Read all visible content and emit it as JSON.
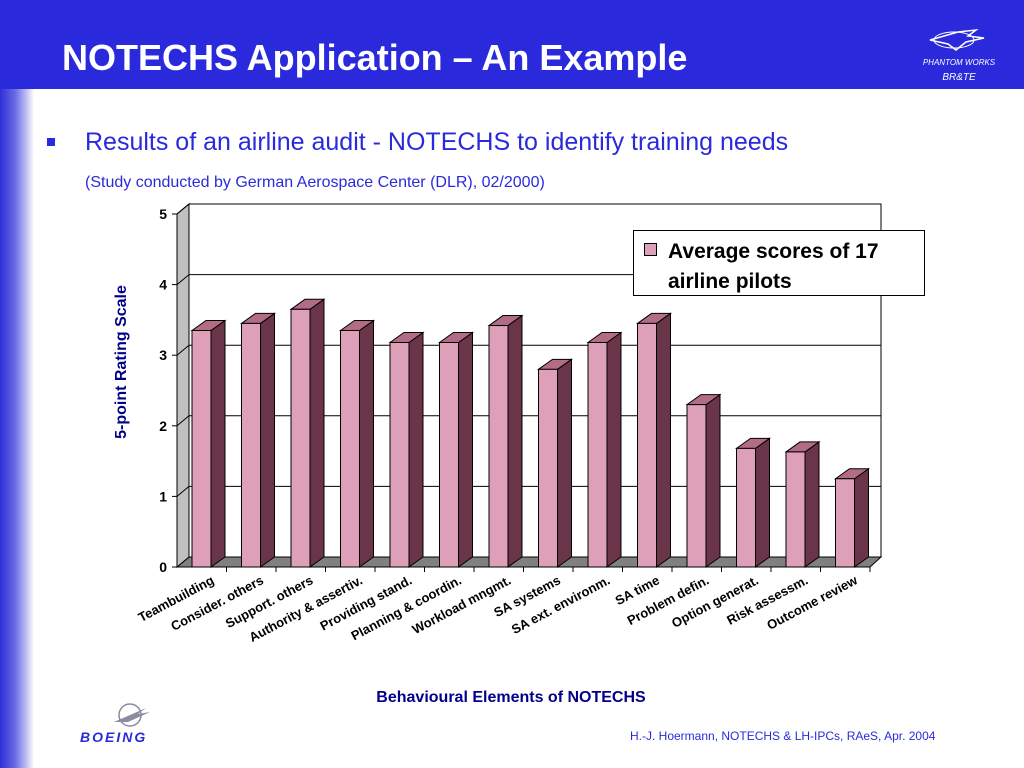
{
  "slide": {
    "title": "NOTECHS Application – An Example",
    "bullet": "Results of an airline audit - NOTECHS to identify training needs",
    "subtitle": "(Study conducted by German Aerospace Center (DLR), 02/2000)",
    "footer": "H.-J. Hoermann, NOTECHS & LH-IPCs, RAeS, Apr. 2004"
  },
  "logo": {
    "line1": "PHANTOM WORKS",
    "line2": "BR&TE",
    "boeing": "BOEING"
  },
  "colors": {
    "header": "#2a2adc",
    "text_blue": "#2a2adc",
    "axis_title": "#00008b",
    "bar_front": "#dda0b8",
    "bar_top": "#b26d85",
    "bar_side": "#6a3548"
  },
  "chart_data": {
    "type": "bar",
    "xlabel": "Behavioural Elements of NOTECHS",
    "ylabel": "5-point Rating Scale",
    "ylim": [
      0,
      5
    ],
    "yticks": [
      "0",
      "1",
      "2",
      "3",
      "4",
      "5"
    ],
    "grid": true,
    "legend_position": "top-right",
    "categories": [
      "Teambuilding",
      "Consider. others",
      "Support. others",
      "Authority & assertiv.",
      "Providing stand.",
      "Planning & coordin.",
      "Workload mngmt.",
      "SA systems",
      "SA ext. environm.",
      "SA time",
      "Problem defin.",
      "Option generat.",
      "Risk assessm.",
      "Outcome review"
    ],
    "series": [
      {
        "name": "Average scores of 17 airline pilots",
        "values": [
          3.35,
          3.45,
          3.65,
          3.35,
          3.18,
          3.18,
          3.42,
          2.8,
          3.18,
          3.45,
          2.3,
          1.68,
          1.63,
          1.25
        ]
      }
    ]
  }
}
